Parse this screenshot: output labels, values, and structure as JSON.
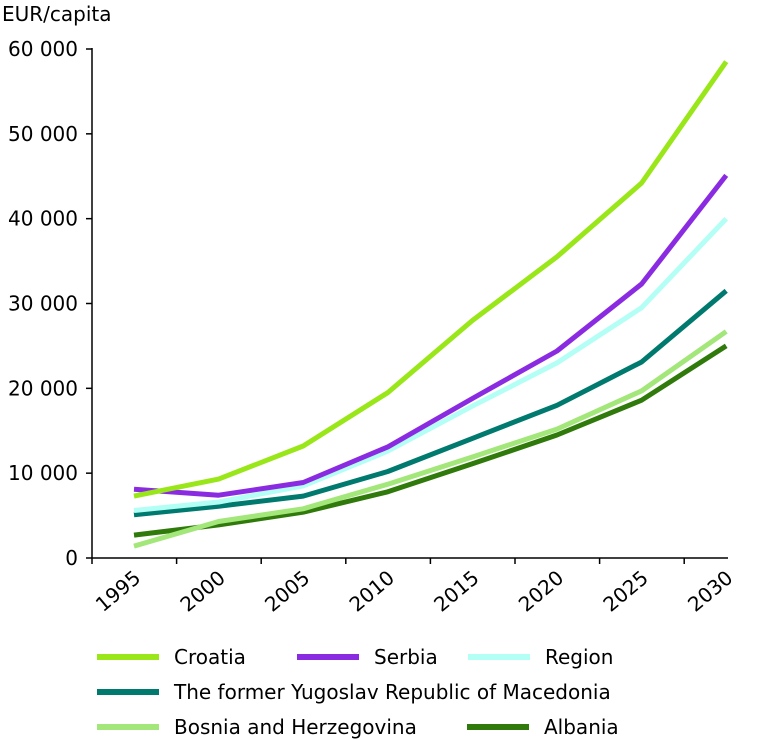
{
  "chart_data": {
    "type": "line",
    "title": "",
    "ylabel": "EUR/capita",
    "xlabel": "",
    "ylim": [
      0,
      60000
    ],
    "y_ticks": [
      0,
      10000,
      20000,
      30000,
      40000,
      50000,
      60000
    ],
    "y_tick_labels": [
      "0",
      "10 000",
      "20 000",
      "30 000",
      "40 000",
      "50 000",
      "60 000"
    ],
    "categories": [
      "1995",
      "2000",
      "2005",
      "2010",
      "2015",
      "2020",
      "2025",
      "2030"
    ],
    "grid": false,
    "legend_position": "bottom",
    "series": [
      {
        "name": "Croatia",
        "color": "#99e619",
        "values": [
          7300,
          9300,
          13200,
          19500,
          28000,
          35500,
          44200,
          58500
        ]
      },
      {
        "name": "Serbia",
        "color": "#8a2be2",
        "values": [
          8100,
          7400,
          8900,
          13100,
          18800,
          24400,
          32300,
          45100
        ]
      },
      {
        "name": "Region",
        "color": "#b3fff5",
        "values": [
          5600,
          6600,
          8500,
          12600,
          17900,
          23000,
          29500,
          40000
        ]
      },
      {
        "name": "The former Yugoslav Republic of Macedonia",
        "color": "#007a6e",
        "values": [
          5100,
          6100,
          7300,
          10200,
          14100,
          18000,
          23100,
          31500
        ]
      },
      {
        "name": "Bosnia and Herzegovina",
        "color": "#a3e67a",
        "values": [
          1400,
          4300,
          5800,
          8700,
          11900,
          15200,
          19700,
          26700
        ]
      },
      {
        "name": "Albania",
        "color": "#2f7a0a",
        "values": [
          2700,
          3900,
          5400,
          7800,
          11100,
          14500,
          18600,
          25000
        ]
      }
    ]
  }
}
